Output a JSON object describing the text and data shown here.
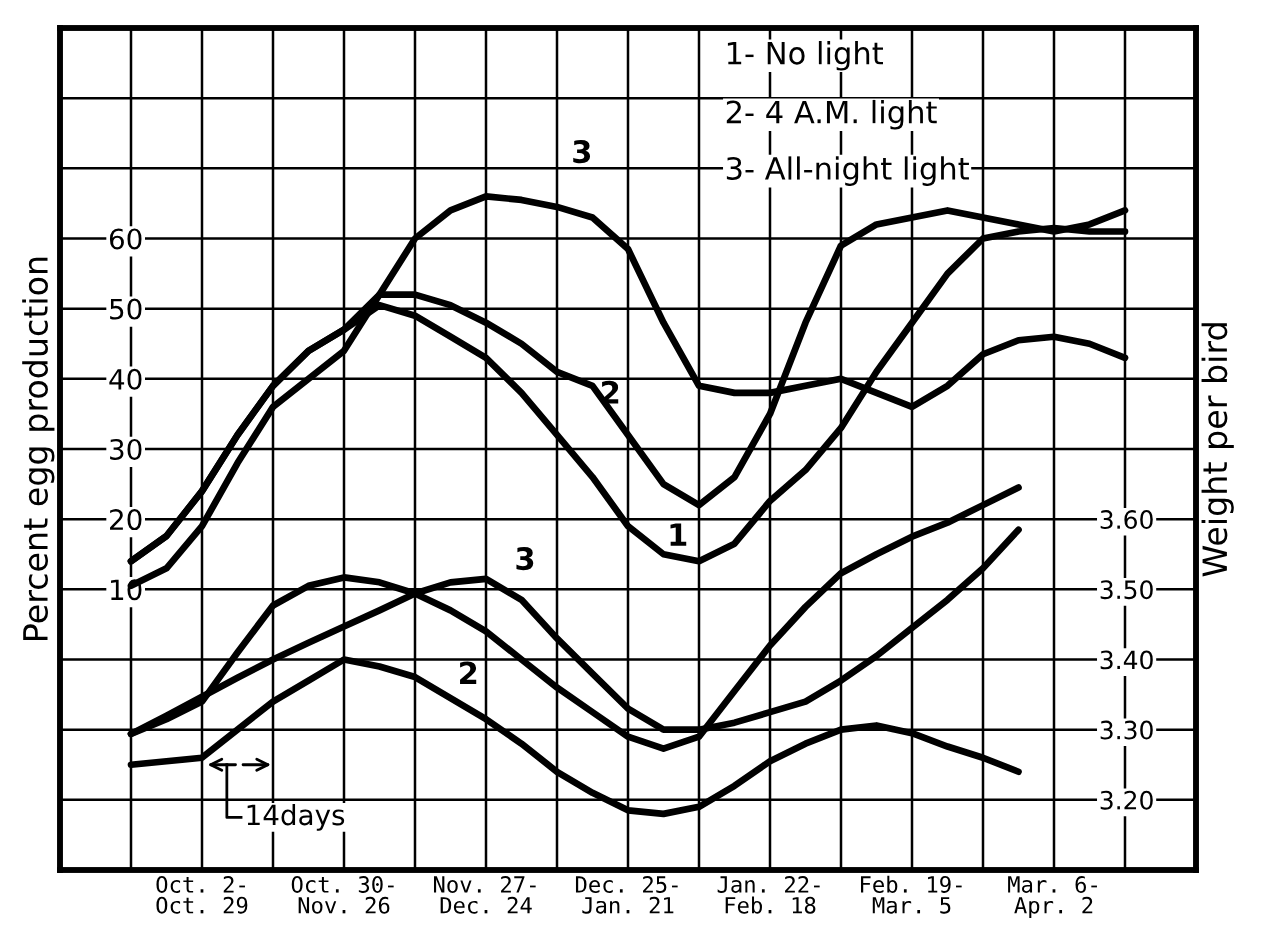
{
  "chart_data": {
    "type": "line",
    "ylabel": "Percent egg production",
    "y2label": "Weight per bird",
    "categories": [
      null,
      null,
      "Oct. 2-\nOct. 29",
      null,
      null,
      null,
      "Oct. 30-\nNov. 26",
      null,
      null,
      null,
      "Nov. 27-\nDec. 24",
      null,
      null,
      null,
      "Dec. 25-\nJan. 21",
      null,
      null,
      null,
      "Jan. 22-\nFeb. 18",
      null,
      null,
      null,
      "Feb. 19-\nMar. 5",
      null,
      null,
      null,
      "Mar. 6-\nApr. 2",
      null,
      null
    ],
    "ylim": [
      -30,
      90
    ],
    "yticks": [
      {
        "value": -20,
        "label": null
      },
      {
        "value": -10,
        "label": null
      },
      {
        "value": 0,
        "label": null
      },
      10,
      20,
      30,
      40,
      50,
      60,
      {
        "value": 70,
        "label": null
      },
      {
        "value": 80,
        "label": null
      }
    ],
    "y2lim": [
      3.1,
      4.3
    ],
    "y2ticks": [
      {
        "value": 3.2,
        "label": "3.20"
      },
      {
        "value": 3.3,
        "label": "3.30"
      },
      {
        "value": 3.4,
        "label": "3.40"
      },
      {
        "value": 3.5,
        "label": "3.50"
      },
      {
        "value": 3.6,
        "label": "3.60"
      }
    ],
    "grid": true,
    "legend": false,
    "marker": "none",
    "line_style": "solid",
    "series": [
      {
        "color": "#000000",
        "values": [
          14,
          17.6,
          24,
          32,
          39,
          44,
          47,
          50.5,
          49,
          46,
          43,
          38,
          32,
          26,
          19,
          15,
          14,
          16.5,
          22.6,
          27,
          33,
          41,
          48,
          55,
          60,
          61,
          61.5,
          61,
          61
        ]
      },
      {
        "color": "#000000",
        "values": [
          14,
          17.6,
          24,
          32,
          39,
          44,
          47,
          52,
          52,
          50.5,
          48,
          45,
          41,
          39,
          32,
          25,
          22,
          26,
          35,
          48,
          59,
          62,
          63,
          64,
          63,
          62,
          61,
          62,
          64
        ]
      },
      {
        "color": "#000000",
        "values": [
          10.5,
          13,
          19,
          28,
          36,
          40,
          44,
          52,
          60,
          64,
          66,
          65.5,
          64.5,
          63,
          58.5,
          48,
          39,
          38,
          38,
          39,
          40,
          38,
          36,
          39,
          43.5,
          45.5,
          46,
          45,
          43
        ]
      },
      {
        "color": "#000000",
        "axis": "y2",
        "values": [
          3.25,
          3.255,
          3.26,
          3.3,
          3.34,
          3.37,
          3.4,
          3.39,
          3.375,
          3.345,
          3.315,
          3.28,
          3.24,
          3.21,
          3.185,
          3.18,
          3.19,
          3.22,
          3.255,
          3.28,
          3.3,
          3.306,
          3.295,
          3.276,
          3.26,
          3.24,
          null,
          null,
          null
        ]
      },
      {
        "color": "#000000",
        "axis": "y2",
        "values": [
          3.294,
          3.32,
          3.347,
          3.374,
          3.4,
          3.424,
          3.447,
          3.47,
          3.494,
          3.51,
          3.515,
          3.485,
          3.43,
          3.38,
          3.33,
          3.3,
          3.3,
          3.31,
          3.325,
          3.34,
          3.37,
          3.405,
          3.445,
          3.485,
          3.53,
          3.585,
          null,
          null,
          null
        ]
      },
      {
        "color": "#000000",
        "axis": "y2",
        "values": [
          3.294,
          3.315,
          3.34,
          3.41,
          3.477,
          3.505,
          3.517,
          3.51,
          3.494,
          3.47,
          3.44,
          3.4,
          3.36,
          3.325,
          3.29,
          3.273,
          3.29,
          3.355,
          3.42,
          3.475,
          3.523,
          3.55,
          3.575,
          3.595,
          3.62,
          3.645,
          null,
          null,
          null
        ]
      }
    ],
    "annotations": [
      "1- No light",
      "2- 4 A.M. light",
      "3- All-night light",
      "14days",
      "3",
      "2",
      "1",
      "3",
      "2"
    ]
  }
}
